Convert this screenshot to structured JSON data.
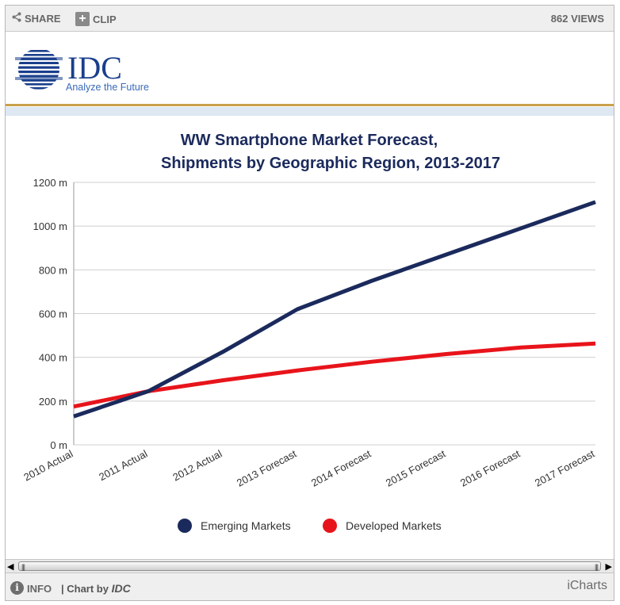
{
  "toolbar": {
    "share_label": "SHARE",
    "clip_label": "CLIP",
    "views": "862 VIEWS"
  },
  "logo": {
    "name": "IDC",
    "tagline": "Analyze the Future",
    "brand_color": "#1a3f8c"
  },
  "chart_data": {
    "type": "line",
    "title": "WW Smartphone Market Forecast,",
    "subtitle": "Shipments by Geographic Region, 2013-2017",
    "categories": [
      "2010 Actual",
      "2011 Actual",
      "2012 Actual",
      "2013 Forecast",
      "2014 Forecast",
      "2015 Forecast",
      "2016 Forecast",
      "2017 Forecast"
    ],
    "series": [
      {
        "name": "Emerging Markets",
        "color": "#1b2a5c",
        "values": [
          130,
          245,
          425,
          620,
          750,
          870,
          990,
          1110
        ]
      },
      {
        "name": "Developed Markets",
        "color": "#e8141b",
        "values": [
          175,
          245,
          295,
          340,
          380,
          415,
          445,
          463
        ]
      }
    ],
    "yticks": [
      "0 m",
      "200 m",
      "400 m",
      "600 m",
      "800 m",
      "1000 m",
      "1200 m"
    ],
    "ylim": [
      0,
      1200
    ],
    "grid": true,
    "legend_position": "bottom"
  },
  "footer": {
    "info_label": "INFO",
    "chart_by_prefix": "| Chart by ",
    "chart_by_name": "IDC",
    "brand": "iCharts"
  }
}
